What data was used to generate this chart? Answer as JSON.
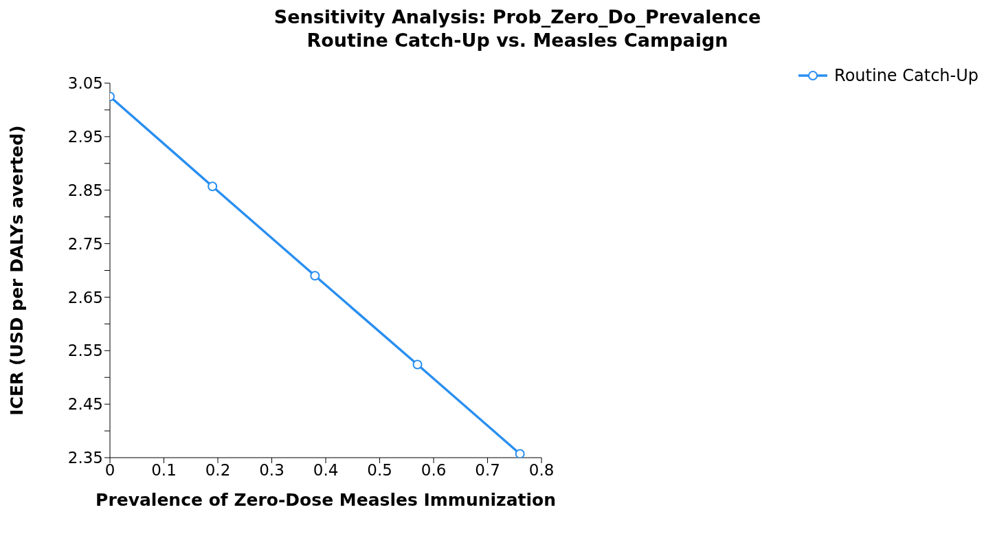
{
  "chart_data": {
    "type": "line",
    "title": "Sensitivity Analysis: Prob_Zero_Do_Prevalence\nRoutine Catch-Up vs. Measles Campaign",
    "xlabel": "Prevalence of Zero-Dose Measles Immunization",
    "ylabel": "ICER (USD per DALYs averted)",
    "x": [
      0,
      0.19,
      0.38,
      0.57,
      0.76
    ],
    "series": [
      {
        "name": "Routine Catch-Up",
        "color": "#2a8ff0",
        "values": [
          3.025,
          2.857,
          2.69,
          2.524,
          2.357
        ]
      }
    ],
    "xlim": [
      0,
      0.8
    ],
    "xticks": [
      0,
      0.1,
      0.2,
      0.3,
      0.4,
      0.5,
      0.6,
      0.7,
      0.8
    ],
    "ylim": [
      2.35,
      3.05
    ],
    "yticks": [
      2.35,
      {
        "value": 2.4,
        "label": null
      },
      2.45,
      {
        "value": 2.5,
        "label": null
      },
      2.55,
      {
        "value": 2.6,
        "label": null
      },
      2.65,
      {
        "value": 2.7,
        "label": null
      },
      2.75,
      {
        "value": 2.8,
        "label": null
      },
      2.85,
      {
        "value": 2.9,
        "label": null
      },
      2.95,
      {
        "value": 3.0,
        "label": null
      },
      3.05
    ],
    "grid": false,
    "legend": "top right",
    "marker": "circle",
    "line_style": "solid"
  }
}
